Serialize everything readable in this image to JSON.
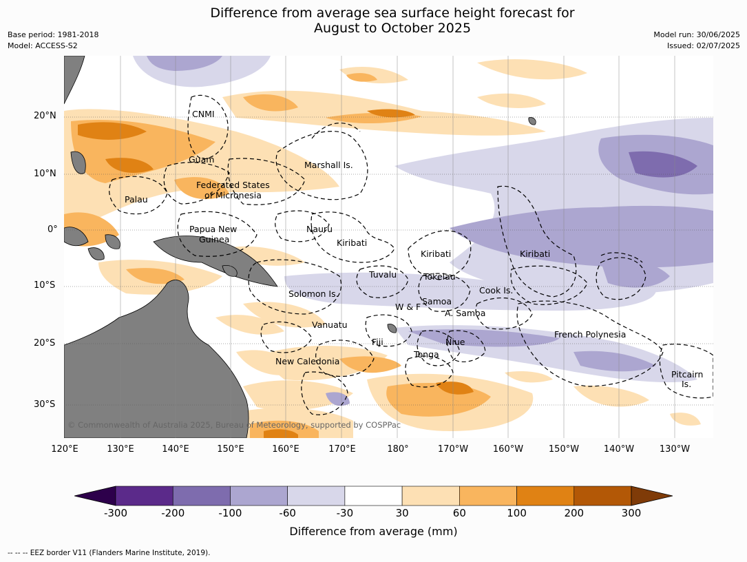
{
  "title_line1": "Difference from average sea surface height forecast for",
  "title_line2": "August to October 2025",
  "base_period": "Base period: 1981-2018",
  "model": "Model: ACCESS-S2",
  "model_run": "Model run: 30/06/2025",
  "issued": "Issued: 02/07/2025",
  "lat_labels": [
    "20°N",
    "10°N",
    "0°",
    "10°S",
    "20°S",
    "30°S"
  ],
  "lon_labels": [
    "120°E",
    "130°E",
    "140°E",
    "150°E",
    "160°E",
    "170°E",
    "180°",
    "170°W",
    "160°W",
    "150°W",
    "140°W",
    "130°W"
  ],
  "eez_labels": {
    "cnmi": "CNMI",
    "guam": "Guam",
    "marshall": "Marshall Is.",
    "fsm1": "Federated States",
    "fsm2": "of Micronesia",
    "palau": "Palau",
    "png1": "Papua New",
    "png2": "Guinea",
    "nauru": "Nauru",
    "kiribati_w": "Kiribati",
    "kiribati_c": "Kiribati",
    "kiribati_e": "Kiribati",
    "tuvalu": "Tuvalu",
    "tokelau": "Tokelau",
    "cook": "Cook Is.",
    "solomon": "Solomon Is.",
    "samoa": "Samoa",
    "wf": "W & F",
    "asamoa": "A. Samoa",
    "vanuatu": "Vanuatu",
    "fiji": "Fiji",
    "niue": "Niue",
    "frpoly": "French Polynesia",
    "tonga": "Tonga",
    "newcal": "New Caledonia",
    "pitcairn1": "Pitcairn",
    "pitcairn2": "Is."
  },
  "copyright": "© Commonwealth of Australia 2025, Bureau of Meteorology, supported by COSPPac",
  "colorbar": {
    "ticks": [
      "-300",
      "-200",
      "-100",
      "-60",
      "-30",
      "30",
      "60",
      "100",
      "200",
      "300"
    ],
    "colors": [
      "#5b2a8a",
      "#7e6cae",
      "#aca6d0",
      "#d8d7ea",
      "#ffffff",
      "#fde0b4",
      "#f9b55e",
      "#e08214",
      "#b35806"
    ],
    "under_color": "#2d004b",
    "over_color": "#7f3b08",
    "label": "Difference from average (mm)"
  },
  "footnote": "-- -- -- EEZ border V11 (Flanders Marine Institute, 2019).",
  "land_color": "#808080"
}
